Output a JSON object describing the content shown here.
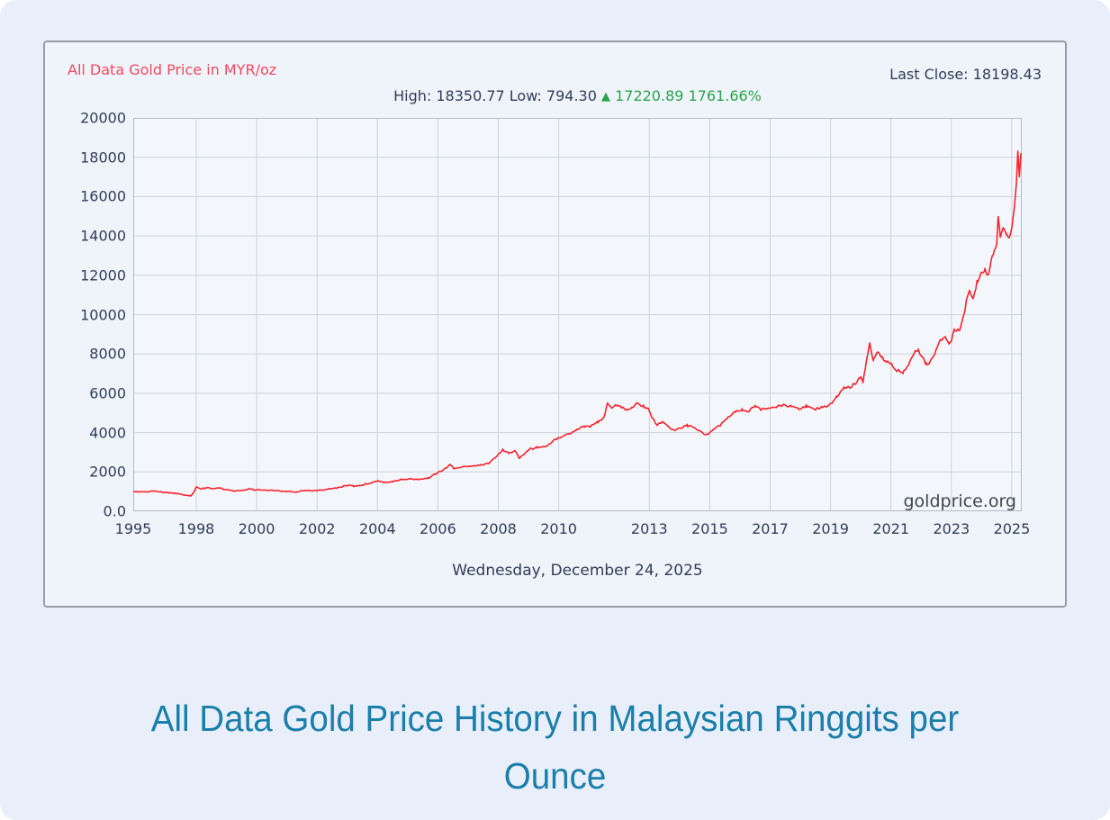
{
  "page": {
    "background_color": "#e9eefb"
  },
  "chart_panel": {
    "series_label": "All Data Gold Price in MYR/oz",
    "last_close_text": "Last Close: 18198.43",
    "summary": {
      "high_low_text": "High: 18350.77 Low: 794.30",
      "arrow": "▲",
      "change_text": "17220.89 1761.66%"
    },
    "watermark": "goldprice.org",
    "date_label": "Wednesday, December 24, 2025",
    "colors": {
      "series_label_red": "#f24a5d",
      "text_navy": "#2f3e58",
      "gain_green": "#2aa44c",
      "line_red": "#f9232e",
      "title_teal": "#1a7fa9",
      "grid": "#ccd3dd",
      "plot_border": "#b3bac6"
    }
  },
  "caption": {
    "title": "All Data Gold Price History in Malaysian Ringgits per Ounce",
    "title_lines": [
      "All Data Gold Price History in Malaysian Ringgits per",
      "Ounce"
    ]
  },
  "chart_data": {
    "type": "line",
    "title": "All Data Gold Price in MYR/oz",
    "currency": "MYR/oz",
    "high": 18350.77,
    "low": 794.3,
    "change": 17220.89,
    "change_percent": "1761.66%",
    "last_close": 18198.43,
    "as_of_date": "Wednesday, December 24, 2025",
    "ylim": [
      0,
      20000
    ],
    "y_ticks": [
      20000,
      18000,
      16000,
      14000,
      12000,
      10000,
      8000,
      6000,
      4000,
      2000,
      0
    ],
    "y_tick_labels": [
      "20000",
      "18000",
      "16000",
      "14000",
      "12000",
      "10000",
      "8000",
      "6000",
      "4000",
      "2000",
      "0.0"
    ],
    "x_ticks": [
      1995,
      1998,
      2000,
      2002,
      2004,
      2006,
      2008,
      2010,
      2013,
      2015,
      2017,
      2019,
      2021,
      2023,
      2025
    ],
    "x_tick_labels": [
      "1995",
      "1998",
      "2000",
      "2002",
      "2004",
      "2006",
      "2008",
      "2010",
      "2013",
      "2015",
      "2017",
      "2019",
      "2021",
      "2023",
      "2025"
    ],
    "x_map_anchors": [
      [
        1995,
        0
      ],
      [
        1998,
        0.0709
      ],
      [
        2025.33,
        1
      ]
    ],
    "grid": true,
    "legend": false,
    "line_color": "#f9232e",
    "noise_pct": 1.1,
    "series": [
      {
        "name": "Gold Price in MYR/oz",
        "points": [
          [
            1995.0,
            1005
          ],
          [
            1995.35,
            985
          ],
          [
            1995.7,
            1000
          ],
          [
            1996.0,
            1015
          ],
          [
            1996.3,
            975
          ],
          [
            1996.7,
            935
          ],
          [
            1997.0,
            900
          ],
          [
            1997.3,
            855
          ],
          [
            1997.6,
            810
          ],
          [
            1997.75,
            795
          ],
          [
            1997.9,
            1000
          ],
          [
            1998.0,
            1240
          ],
          [
            1998.15,
            1120
          ],
          [
            1998.35,
            1205
          ],
          [
            1998.55,
            1145
          ],
          [
            1998.75,
            1190
          ],
          [
            1999.0,
            1090
          ],
          [
            1999.3,
            1015
          ],
          [
            1999.6,
            1070
          ],
          [
            1999.75,
            1150
          ],
          [
            1999.9,
            1085
          ],
          [
            2000.1,
            1095
          ],
          [
            2000.4,
            1060
          ],
          [
            2000.7,
            1045
          ],
          [
            2001.0,
            1015
          ],
          [
            2001.3,
            985
          ],
          [
            2001.6,
            1065
          ],
          [
            2001.85,
            1040
          ],
          [
            2002.1,
            1075
          ],
          [
            2002.4,
            1140
          ],
          [
            2002.7,
            1200
          ],
          [
            2003.0,
            1320
          ],
          [
            2003.2,
            1270
          ],
          [
            2003.5,
            1340
          ],
          [
            2003.8,
            1450
          ],
          [
            2004.0,
            1560
          ],
          [
            2004.2,
            1470
          ],
          [
            2004.5,
            1505
          ],
          [
            2004.8,
            1625
          ],
          [
            2005.1,
            1630
          ],
          [
            2005.4,
            1615
          ],
          [
            2005.7,
            1705
          ],
          [
            2005.95,
            1920
          ],
          [
            2006.2,
            2130
          ],
          [
            2006.4,
            2360
          ],
          [
            2006.55,
            2160
          ],
          [
            2006.8,
            2260
          ],
          [
            2007.1,
            2290
          ],
          [
            2007.4,
            2330
          ],
          [
            2007.7,
            2450
          ],
          [
            2007.95,
            2800
          ],
          [
            2008.15,
            3120
          ],
          [
            2008.35,
            2960
          ],
          [
            2008.55,
            3060
          ],
          [
            2008.7,
            2680
          ],
          [
            2008.85,
            2900
          ],
          [
            2009.05,
            3160
          ],
          [
            2009.3,
            3240
          ],
          [
            2009.6,
            3320
          ],
          [
            2009.85,
            3620
          ],
          [
            2010.1,
            3780
          ],
          [
            2010.35,
            3940
          ],
          [
            2010.6,
            4180
          ],
          [
            2010.85,
            4320
          ],
          [
            2011.05,
            4310
          ],
          [
            2011.3,
            4530
          ],
          [
            2011.5,
            4760
          ],
          [
            2011.62,
            5530
          ],
          [
            2011.75,
            5260
          ],
          [
            2011.9,
            5430
          ],
          [
            2012.05,
            5310
          ],
          [
            2012.25,
            5140
          ],
          [
            2012.45,
            5300
          ],
          [
            2012.6,
            5460
          ],
          [
            2012.8,
            5340
          ],
          [
            2012.95,
            5230
          ],
          [
            2013.1,
            4750
          ],
          [
            2013.25,
            4380
          ],
          [
            2013.45,
            4550
          ],
          [
            2013.65,
            4300
          ],
          [
            2013.85,
            4080
          ],
          [
            2014.05,
            4250
          ],
          [
            2014.25,
            4380
          ],
          [
            2014.5,
            4220
          ],
          [
            2014.7,
            4060
          ],
          [
            2014.9,
            3900
          ],
          [
            2015.1,
            4130
          ],
          [
            2015.35,
            4400
          ],
          [
            2015.6,
            4750
          ],
          [
            2015.85,
            5080
          ],
          [
            2016.05,
            5170
          ],
          [
            2016.25,
            5020
          ],
          [
            2016.5,
            5380
          ],
          [
            2016.7,
            5150
          ],
          [
            2016.95,
            5230
          ],
          [
            2017.2,
            5320
          ],
          [
            2017.45,
            5400
          ],
          [
            2017.7,
            5340
          ],
          [
            2017.95,
            5180
          ],
          [
            2018.2,
            5340
          ],
          [
            2018.45,
            5150
          ],
          [
            2018.7,
            5280
          ],
          [
            2018.95,
            5380
          ],
          [
            2019.2,
            5800
          ],
          [
            2019.45,
            6350
          ],
          [
            2019.65,
            6250
          ],
          [
            2019.85,
            6600
          ],
          [
            2020.0,
            6850
          ],
          [
            2020.07,
            6600
          ],
          [
            2020.15,
            7300
          ],
          [
            2020.3,
            8530
          ],
          [
            2020.42,
            7650
          ],
          [
            2020.55,
            8050
          ],
          [
            2020.7,
            7850
          ],
          [
            2020.85,
            7600
          ],
          [
            2021.0,
            7450
          ],
          [
            2021.2,
            7200
          ],
          [
            2021.4,
            7050
          ],
          [
            2021.6,
            7500
          ],
          [
            2021.8,
            8100
          ],
          [
            2021.9,
            8230
          ],
          [
            2022.0,
            7950
          ],
          [
            2022.15,
            7500
          ],
          [
            2022.25,
            7420
          ],
          [
            2022.4,
            7850
          ],
          [
            2022.5,
            8300
          ],
          [
            2022.65,
            8750
          ],
          [
            2022.8,
            8800
          ],
          [
            2022.9,
            8570
          ],
          [
            2023.0,
            8650
          ],
          [
            2023.1,
            9320
          ],
          [
            2023.25,
            9150
          ],
          [
            2023.4,
            9900
          ],
          [
            2023.5,
            10700
          ],
          [
            2023.6,
            11330
          ],
          [
            2023.72,
            10820
          ],
          [
            2023.85,
            11680
          ],
          [
            2024.0,
            12080
          ],
          [
            2024.1,
            12340
          ],
          [
            2024.2,
            11960
          ],
          [
            2024.3,
            12600
          ],
          [
            2024.4,
            13150
          ],
          [
            2024.5,
            13600
          ],
          [
            2024.55,
            14930
          ],
          [
            2024.62,
            14000
          ],
          [
            2024.72,
            14420
          ],
          [
            2024.82,
            14080
          ],
          [
            2024.92,
            13900
          ],
          [
            2025.0,
            14400
          ],
          [
            2025.08,
            15400
          ],
          [
            2025.15,
            16600
          ],
          [
            2025.2,
            18351
          ],
          [
            2025.25,
            17000
          ],
          [
            2025.3,
            18150
          ],
          [
            2025.33,
            18198
          ]
        ]
      }
    ]
  }
}
